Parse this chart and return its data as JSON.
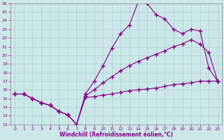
{
  "xlabel": "Windchill (Refroidissement éolien,°C)",
  "bg_color": "#cce8e8",
  "line_color": "#880088",
  "xlim": [
    -0.5,
    23.5
  ],
  "ylim": [
    12,
    26
  ],
  "xticks": [
    0,
    1,
    2,
    3,
    4,
    5,
    6,
    7,
    8,
    9,
    10,
    11,
    12,
    13,
    14,
    15,
    16,
    17,
    18,
    19,
    20,
    21,
    22,
    23
  ],
  "yticks": [
    12,
    13,
    14,
    15,
    16,
    17,
    18,
    19,
    20,
    21,
    22,
    23,
    24,
    25,
    26
  ],
  "line1_x": [
    0,
    1,
    2,
    3,
    4,
    5,
    6,
    7,
    8,
    9,
    10,
    11,
    12,
    13,
    14,
    15,
    16,
    17,
    18,
    19,
    20,
    21,
    22,
    23
  ],
  "line1_y": [
    15.5,
    15.5,
    15.0,
    14.5,
    14.2,
    13.5,
    13.1,
    12.0,
    15.1,
    15.2,
    15.4,
    15.5,
    15.7,
    15.9,
    16.0,
    16.1,
    16.2,
    16.4,
    16.6,
    16.7,
    16.8,
    17.0,
    17.0,
    17.0
  ],
  "line2_x": [
    0,
    1,
    2,
    3,
    4,
    5,
    6,
    7,
    8,
    9,
    10,
    11,
    12,
    13,
    14,
    15,
    16,
    17,
    18,
    19,
    20,
    21,
    22,
    23
  ],
  "line2_y": [
    15.5,
    15.5,
    15.0,
    14.5,
    14.2,
    13.5,
    13.1,
    12.0,
    15.3,
    16.0,
    16.8,
    17.5,
    18.2,
    18.8,
    19.3,
    19.7,
    20.1,
    20.5,
    21.0,
    21.3,
    21.8,
    21.3,
    20.3,
    17.0
  ],
  "line3_x": [
    0,
    1,
    2,
    3,
    4,
    5,
    6,
    7,
    8,
    9,
    10,
    11,
    12,
    13,
    14,
    15,
    16,
    17,
    18,
    19,
    20,
    21,
    22,
    23
  ],
  "line3_y": [
    15.5,
    15.5,
    15.0,
    14.5,
    14.2,
    13.5,
    13.1,
    12.0,
    15.5,
    17.0,
    18.8,
    20.8,
    22.5,
    23.5,
    26.2,
    26.0,
    24.7,
    24.2,
    23.0,
    22.5,
    23.0,
    22.8,
    18.5,
    17.0
  ]
}
